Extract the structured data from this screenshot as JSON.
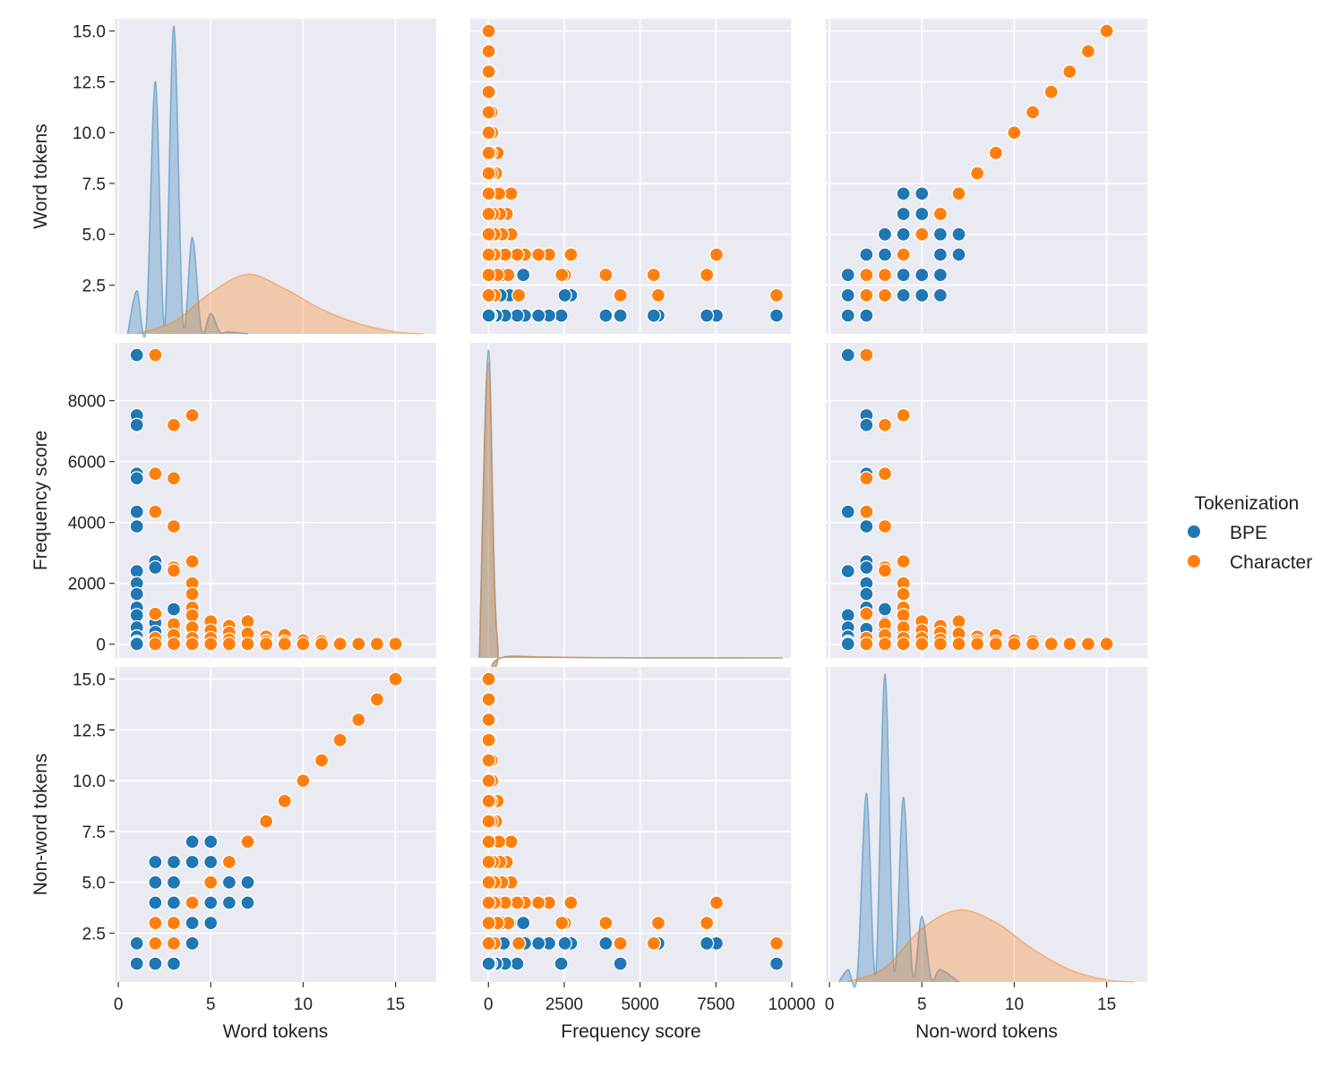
{
  "chart_data": {
    "type": "scatter",
    "subtype": "pairplot",
    "variables": [
      "Word tokens",
      "Frequency score",
      "Non-word tokens"
    ],
    "axis_labels": {
      "Word tokens": "Word tokens",
      "Frequency score": "Frequency score",
      "Non-word tokens": "Non-word tokens"
    },
    "ranges": {
      "Word tokens": [
        -0.2,
        17.2
      ],
      "Frequency score": [
        -600,
        10000
      ],
      "Non-word tokens": [
        -0.2,
        17.2
      ]
    },
    "y_ranges": {
      "Word tokens": [
        0.1,
        15.6
      ],
      "Frequency score": [
        -450,
        9900
      ],
      "Non-word tokens": [
        0.1,
        15.6
      ]
    },
    "x_ticks": {
      "Word tokens": [
        0,
        5,
        10,
        15
      ],
      "Frequency score": [
        0,
        2500,
        5000,
        7500,
        10000
      ],
      "Non-word tokens": [
        0,
        5,
        10,
        15
      ]
    },
    "y_ticks": {
      "Word tokens": [
        2.5,
        5.0,
        7.5,
        10.0,
        12.5,
        15.0
      ],
      "Frequency score": [
        0,
        2000,
        4000,
        6000,
        8000
      ],
      "Non-word tokens": [
        2.5,
        5.0,
        7.5,
        10.0,
        12.5,
        15.0
      ]
    },
    "x_tick_labels": {
      "Word tokens": [
        "0",
        "5",
        "10",
        "15"
      ],
      "Frequency score": [
        "0",
        "2500",
        "5000",
        "7500",
        "10000"
      ],
      "Non-word tokens": [
        "0",
        "5",
        "10",
        "15"
      ]
    },
    "y_tick_labels": {
      "Word tokens": [
        "2.5",
        "5.0",
        "7.5",
        "10.0",
        "12.5",
        "15.0"
      ],
      "Frequency score": [
        "0",
        "2000",
        "4000",
        "6000",
        "8000"
      ],
      "Non-word tokens": [
        "2.5",
        "5.0",
        "7.5",
        "10.0",
        "12.5",
        "15.0"
      ]
    },
    "legend": {
      "title": "Tokenization",
      "placement": "right",
      "entries": [
        {
          "label": "BPE",
          "color": "#1f77b4"
        },
        {
          "label": "Character",
          "color": "#ff7f0e"
        }
      ]
    },
    "series": [
      {
        "name": "BPE",
        "color": "#1f77b4",
        "points": [
          [
            1,
            9500,
            1
          ],
          [
            1,
            7520,
            2
          ],
          [
            1,
            7200,
            2
          ],
          [
            1,
            5600,
            2
          ],
          [
            1,
            5450,
            2
          ],
          [
            1,
            4350,
            1
          ],
          [
            1,
            3870,
            2
          ],
          [
            1,
            2400,
            1
          ],
          [
            1,
            2000,
            2
          ],
          [
            1,
            1650,
            2
          ],
          [
            1,
            1200,
            2
          ],
          [
            1,
            950,
            1
          ],
          [
            1,
            550,
            1
          ],
          [
            1,
            250,
            1
          ],
          [
            1,
            80,
            1
          ],
          [
            1,
            30,
            1
          ],
          [
            1,
            10,
            1
          ],
          [
            2,
            2720,
            2
          ],
          [
            2,
            2520,
            2
          ],
          [
            2,
            700,
            3
          ],
          [
            2,
            400,
            4
          ],
          [
            2,
            150,
            5
          ],
          [
            2,
            50,
            6
          ],
          [
            2,
            20,
            3
          ],
          [
            2,
            10,
            1
          ],
          [
            3,
            1150,
            3
          ],
          [
            3,
            500,
            2
          ],
          [
            3,
            300,
            4
          ],
          [
            3,
            100,
            5
          ],
          [
            3,
            30,
            6
          ],
          [
            3,
            10,
            1
          ],
          [
            4,
            500,
            3
          ],
          [
            4,
            250,
            6
          ],
          [
            4,
            100,
            7
          ],
          [
            4,
            30,
            2
          ],
          [
            5,
            400,
            4
          ],
          [
            5,
            200,
            6
          ],
          [
            5,
            120,
            3
          ],
          [
            5,
            50,
            7
          ],
          [
            6,
            60,
            4
          ],
          [
            6,
            20,
            5
          ],
          [
            7,
            40,
            5
          ],
          [
            7,
            15,
            4
          ]
        ]
      },
      {
        "name": "Character",
        "color": "#ff7f0e",
        "points": [
          [
            2,
            9500,
            2
          ],
          [
            4,
            7520,
            4
          ],
          [
            3,
            7200,
            3
          ],
          [
            2,
            5600,
            3
          ],
          [
            3,
            5450,
            2
          ],
          [
            2,
            4350,
            2
          ],
          [
            3,
            3870,
            3
          ],
          [
            3,
            2520,
            3
          ],
          [
            3,
            2420,
            3
          ],
          [
            4,
            2720,
            4
          ],
          [
            4,
            2000,
            4
          ],
          [
            4,
            1650,
            4
          ],
          [
            4,
            1200,
            4
          ],
          [
            2,
            1000,
            2
          ],
          [
            4,
            950,
            4
          ],
          [
            5,
            750,
            5
          ],
          [
            7,
            750,
            7
          ],
          [
            3,
            650,
            3
          ],
          [
            6,
            600,
            6
          ],
          [
            4,
            550,
            4
          ],
          [
            5,
            450,
            5
          ],
          [
            6,
            380,
            6
          ],
          [
            7,
            350,
            7
          ],
          [
            9,
            300,
            9
          ],
          [
            8,
            250,
            8
          ],
          [
            3,
            300,
            3
          ],
          [
            2,
            200,
            2
          ],
          [
            4,
            200,
            4
          ],
          [
            5,
            200,
            5
          ],
          [
            6,
            150,
            6
          ],
          [
            10,
            120,
            10
          ],
          [
            11,
            100,
            11
          ],
          [
            8,
            100,
            8
          ],
          [
            9,
            80,
            9
          ],
          [
            12,
            50,
            12
          ],
          [
            13,
            30,
            13
          ],
          [
            14,
            20,
            14
          ],
          [
            15,
            10,
            15
          ],
          [
            2,
            10,
            2
          ],
          [
            3,
            10,
            3
          ],
          [
            4,
            10,
            4
          ],
          [
            5,
            10,
            5
          ],
          [
            6,
            10,
            6
          ],
          [
            7,
            10,
            7
          ],
          [
            8,
            10,
            8
          ],
          [
            9,
            10,
            9
          ],
          [
            10,
            10,
            10
          ],
          [
            11,
            10,
            11
          ],
          [
            12,
            10,
            12
          ],
          [
            13,
            10,
            13
          ],
          [
            14,
            10,
            14
          ],
          [
            15,
            10,
            15
          ]
        ]
      }
    ],
    "density_diagonal": {
      "Word tokens": {
        "BPE": {
          "x": [
            0.5,
            1,
            1.5,
            2,
            2.5,
            3,
            3.5,
            4,
            4.5,
            5,
            5.5,
            6,
            7
          ],
          "y": [
            0.0,
            2.1,
            0.3,
            12.3,
            0.4,
            15.0,
            0.6,
            4.7,
            0.2,
            1.0,
            0.1,
            0.1,
            0.0
          ]
        },
        "Character": {
          "x": [
            1,
            3,
            5,
            7,
            9,
            11,
            13,
            15,
            16.5
          ],
          "y": [
            0.0,
            0.6,
            2.0,
            2.9,
            2.2,
            1.2,
            0.5,
            0.1,
            0.0
          ]
        }
      },
      "Frequency score": {
        "BPE": {
          "x": [
            -300,
            0,
            300,
            1000,
            9700
          ],
          "y": [
            0.0,
            9.4,
            0.5,
            0.05,
            0.0
          ]
        },
        "Character": {
          "x": [
            -300,
            0,
            300,
            1000,
            9700
          ],
          "y": [
            0.0,
            9.0,
            0.4,
            0.05,
            0.0
          ]
        }
      },
      "Non-word tokens": {
        "BPE": {
          "x": [
            0.5,
            1,
            1.5,
            2,
            2.5,
            3,
            3.5,
            4,
            4.5,
            5,
            5.5,
            6,
            7
          ],
          "y": [
            0.0,
            0.6,
            0.3,
            9.2,
            0.4,
            15.0,
            0.6,
            9.0,
            0.4,
            3.2,
            0.2,
            0.6,
            0.0
          ]
        },
        "Character": {
          "x": [
            1,
            3,
            5,
            7,
            9,
            11,
            13,
            15,
            16.5
          ],
          "y": [
            0.0,
            0.7,
            2.6,
            3.5,
            2.9,
            1.6,
            0.6,
            0.1,
            0.0
          ]
        }
      }
    }
  }
}
